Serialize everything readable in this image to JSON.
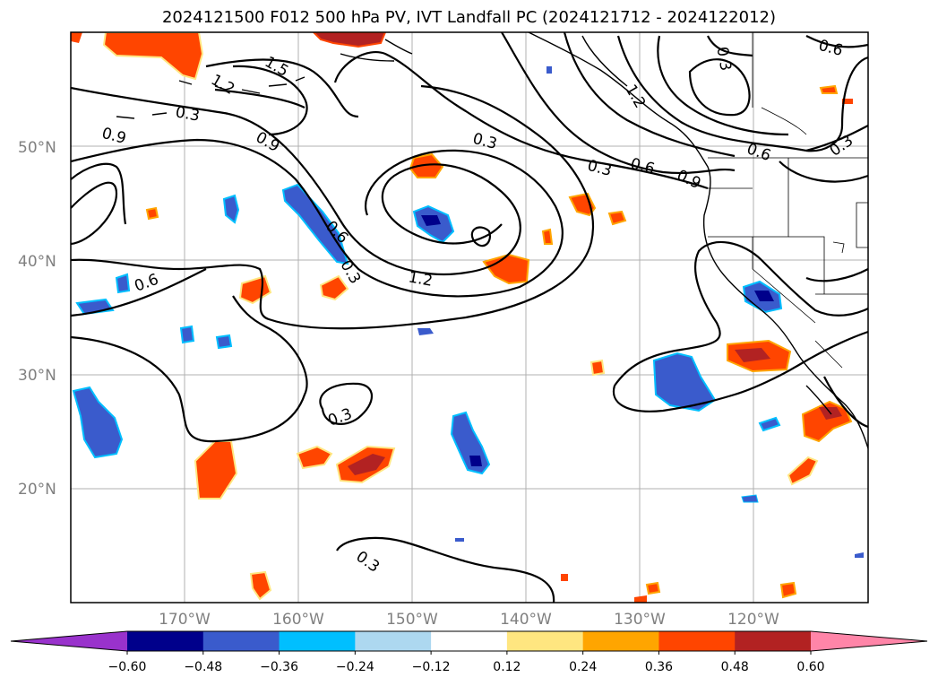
{
  "title": "2024121500 F012 500 hPa PV, IVT Landfall PC (2024121712 - 2024122012)",
  "map": {
    "lat_labels": [
      "50°N",
      "40°N",
      "30°N",
      "20°N"
    ],
    "lon_labels": [
      "170°W",
      "160°W",
      "150°W",
      "140°W",
      "130°W",
      "120°W"
    ],
    "lon_range": [
      -180,
      -110
    ],
    "lat_range": [
      10,
      60
    ]
  },
  "contour_labels": [
    "1.5",
    "1.2",
    "0.3",
    "0.9",
    "0.9",
    "0.3",
    "0.3",
    "0.6",
    "0.9",
    "0.6",
    "0.3",
    "0.6",
    "1.2",
    "0.6",
    "0.3",
    "1.2",
    "0.6",
    "0.3",
    "0.3",
    "0.3"
  ],
  "colorbar": {
    "ticks": [
      "−0.60",
      "−0.48",
      "−0.36",
      "−0.24",
      "−0.12",
      "0.12",
      "0.24",
      "0.36",
      "0.48",
      "0.60"
    ],
    "colors": [
      "#9932cc",
      "#00008b",
      "#3a5bcc",
      "#00bfff",
      "#add8f0",
      "#ffffff",
      "#ffe680",
      "#ffa500",
      "#ff4500",
      "#b22222",
      "#ff85a8"
    ]
  }
}
